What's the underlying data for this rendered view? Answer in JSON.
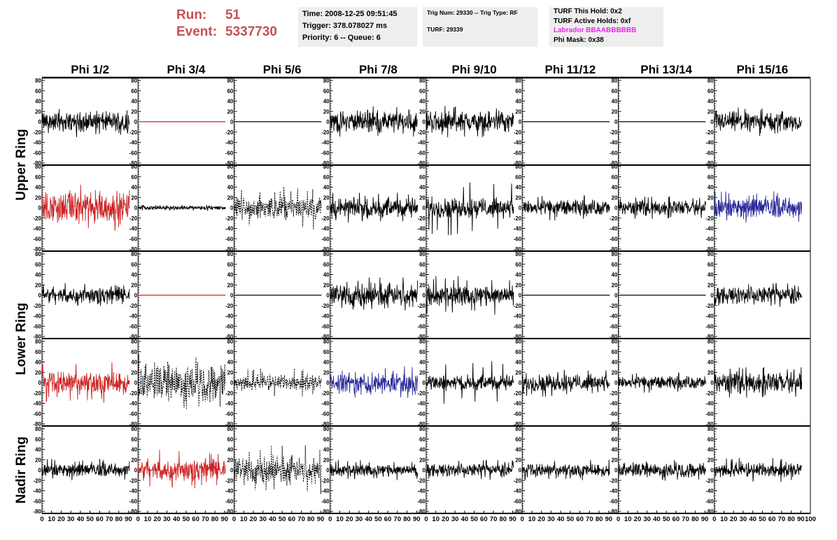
{
  "header": {
    "run_label": "Run:",
    "run_value": "51",
    "event_label": "Event:",
    "event_value": "5337730",
    "time": "Time: 2008-12-25 09:51:45",
    "trigger": "Trigger: 378.078027 ms",
    "priority": "Priority: 6 -- Queue: 6",
    "trig_num": "Trig Num: 29330 -- Trig Type: RF",
    "turf": "TURF: 29339",
    "turf_this_hold": "TURF This Hold: 0x2",
    "turf_active_holds": "TURF Active Holds: 0xf",
    "labrador": "Labrador BBAABBBBBB",
    "phi_mask": "Phi Mask: 0x38"
  },
  "colors": {
    "title": "#c75050",
    "trace_black": "#000000",
    "trace_red": "#cc2222",
    "trace_blue": "#2a2a99",
    "labrador": "#ee22ee",
    "info_bg": "#eeeeee"
  },
  "chart_data": {
    "type": "line",
    "columns": [
      "Phi 1/2",
      "Phi 3/4",
      "Phi 5/6",
      "Phi 7/8",
      "Phi 9/10",
      "Phi 11/12",
      "Phi 13/14",
      "Phi 15/16"
    ],
    "ring_labels": [
      "Upper Ring",
      "Lower Ring",
      "Nadir Ring"
    ],
    "xlim": [
      0,
      100
    ],
    "ylim": [
      -80,
      80
    ],
    "x_ticks": [
      0,
      10,
      20,
      30,
      40,
      50,
      60,
      70,
      80,
      90,
      100
    ],
    "y_ticks": [
      -80,
      -60,
      -40,
      -20,
      0,
      20,
      40,
      60,
      80
    ],
    "grid": false,
    "legend": "none",
    "rows": [
      {
        "ring": "Upper Ring",
        "panels": [
          {
            "color": "black",
            "style": "solid",
            "amplitude": 14,
            "peak": 30,
            "kind": "noise"
          },
          {
            "color": "red",
            "style": "solid",
            "amplitude": 0,
            "peak": 0,
            "kind": "flat"
          },
          {
            "color": "black",
            "style": "solid",
            "amplitude": 0,
            "peak": 0,
            "kind": "flat"
          },
          {
            "color": "black",
            "style": "solid",
            "amplitude": 15,
            "peak": 30,
            "kind": "noise"
          },
          {
            "color": "black",
            "style": "solid",
            "amplitude": 15,
            "peak": 35,
            "kind": "noise"
          },
          {
            "color": "black",
            "style": "solid",
            "amplitude": 0,
            "peak": 0,
            "kind": "flat"
          },
          {
            "color": "black",
            "style": "solid",
            "amplitude": 0,
            "peak": 0,
            "kind": "flat"
          },
          {
            "color": "black",
            "style": "solid",
            "amplitude": 14,
            "peak": 28,
            "kind": "noise"
          }
        ]
      },
      {
        "ring": "Upper Ring",
        "panels": [
          {
            "color": "red",
            "style": "solid",
            "amplitude": 22,
            "peak": 45,
            "kind": "noise"
          },
          {
            "color": "black",
            "style": "solid",
            "amplitude": 3,
            "peak": 6,
            "kind": "noise"
          },
          {
            "color": "black",
            "style": "dashed",
            "amplitude": 16,
            "peak": 42,
            "kind": "noise"
          },
          {
            "color": "black",
            "style": "solid",
            "amplitude": 14,
            "peak": 30,
            "kind": "noise"
          },
          {
            "color": "black",
            "style": "solid",
            "amplitude": 14,
            "peak": 55,
            "kind": "noise"
          },
          {
            "color": "black",
            "style": "solid",
            "amplitude": 11,
            "peak": 25,
            "kind": "noise"
          },
          {
            "color": "black",
            "style": "solid",
            "amplitude": 10,
            "peak": 22,
            "kind": "noise"
          },
          {
            "color": "blue",
            "style": "solid",
            "amplitude": 14,
            "peak": 32,
            "kind": "noise"
          }
        ]
      },
      {
        "ring": "Lower Ring",
        "panels": [
          {
            "color": "black",
            "style": "solid",
            "amplitude": 12,
            "peak": 25,
            "kind": "noise"
          },
          {
            "color": "red",
            "style": "solid",
            "amplitude": 0,
            "peak": 0,
            "kind": "flat"
          },
          {
            "color": "black",
            "style": "solid",
            "amplitude": 0,
            "peak": 0,
            "kind": "flat"
          },
          {
            "color": "black",
            "style": "solid",
            "amplitude": 17,
            "peak": 36,
            "kind": "noise"
          },
          {
            "color": "black",
            "style": "solid",
            "amplitude": 15,
            "peak": 38,
            "kind": "noise"
          },
          {
            "color": "black",
            "style": "solid",
            "amplitude": 0,
            "peak": 0,
            "kind": "flat"
          },
          {
            "color": "black",
            "style": "solid",
            "amplitude": 0,
            "peak": 0,
            "kind": "flat"
          },
          {
            "color": "black",
            "style": "solid",
            "amplitude": 12,
            "peak": 24,
            "kind": "noise"
          }
        ]
      },
      {
        "ring": "Lower Ring",
        "panels": [
          {
            "color": "red",
            "style": "solid",
            "amplitude": 16,
            "peak": 40,
            "kind": "noise"
          },
          {
            "color": "black",
            "style": "dashed",
            "amplitude": 26,
            "peak": 55,
            "kind": "noise"
          },
          {
            "color": "black",
            "style": "dashed",
            "amplitude": 11,
            "peak": 28,
            "kind": "noise"
          },
          {
            "color": "blue",
            "style": "solid",
            "amplitude": 15,
            "peak": 32,
            "kind": "noise"
          },
          {
            "color": "black",
            "style": "solid",
            "amplitude": 11,
            "peak": 42,
            "kind": "noise"
          },
          {
            "color": "black",
            "style": "solid",
            "amplitude": 12,
            "peak": 28,
            "kind": "noise"
          },
          {
            "color": "black",
            "style": "solid",
            "amplitude": 9,
            "peak": 20,
            "kind": "noise"
          },
          {
            "color": "black",
            "style": "solid",
            "amplitude": 14,
            "peak": 30,
            "kind": "noise"
          }
        ]
      },
      {
        "ring": "Nadir Ring",
        "panels": [
          {
            "color": "black",
            "style": "solid",
            "amplitude": 9,
            "peak": 22,
            "kind": "noise"
          },
          {
            "color": "red",
            "style": "solid",
            "amplitude": 16,
            "peak": 42,
            "kind": "noise"
          },
          {
            "color": "black",
            "style": "dashed",
            "amplitude": 20,
            "peak": 50,
            "kind": "noise"
          },
          {
            "color": "black",
            "style": "solid",
            "amplitude": 9,
            "peak": 20,
            "kind": "noise"
          },
          {
            "color": "black",
            "style": "solid",
            "amplitude": 9,
            "peak": 20,
            "kind": "noise"
          },
          {
            "color": "black",
            "style": "solid",
            "amplitude": 9,
            "peak": 20,
            "kind": "noise"
          },
          {
            "color": "black",
            "style": "solid",
            "amplitude": 10,
            "peak": 22,
            "kind": "noise"
          },
          {
            "color": "black",
            "style": "solid",
            "amplitude": 10,
            "peak": 24,
            "kind": "noise"
          }
        ]
      }
    ]
  }
}
